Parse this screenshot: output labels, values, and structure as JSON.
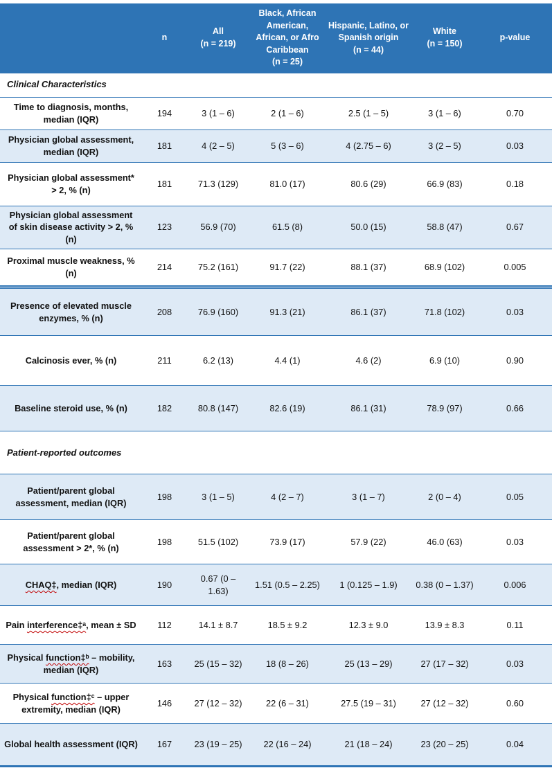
{
  "colors": {
    "header_bg": "#2E74B5",
    "header_text": "#FFFFFF",
    "row_shade": "#DEEAF6",
    "border": "#2E74B5",
    "squiggle": "#C00000"
  },
  "table": {
    "header": {
      "cols": [
        "",
        "n",
        "All\n(n = 219)",
        "Black, African American, African, or Afro Caribbean\n(n = 25)",
        "Hispanic, Latino, or Spanish origin\n(n = 44)",
        "White\n(n = 150)",
        "p-value"
      ]
    },
    "rows": [
      {
        "type": "section",
        "label": "Clinical Characteristics"
      },
      {
        "type": "data",
        "shade": false,
        "label": "Time to diagnosis, months, median (IQR)",
        "cells": [
          "194",
          "3 (1 – 6)",
          "2 (1 – 6)",
          "2.5 (1 – 5)",
          "3 (1 – 6)",
          "0.70"
        ]
      },
      {
        "type": "data",
        "shade": true,
        "label": "Physician global assessment, median (IQR)",
        "cells": [
          "181",
          "4 (2 – 5)",
          "5 (3 – 6)",
          "4 (2.75 – 6)",
          "3 (2 – 5)",
          "0.03"
        ]
      },
      {
        "type": "data",
        "shade": false,
        "label": "Physician global assessment* > 2, % (n)",
        "cells": [
          "181",
          "71.3 (129)",
          "81.0 (17)",
          "80.6 (29)",
          "66.9 (83)",
          "0.18"
        ]
      },
      {
        "type": "data",
        "shade": true,
        "label": "Physician global assessment of skin disease activity > 2, % (n)",
        "cells": [
          "123",
          "56.9 (70)",
          "61.5 (8)",
          "50.0 (15)",
          "58.8 (47)",
          "0.67"
        ]
      },
      {
        "type": "data",
        "shade": false,
        "label": "Proximal muscle weakness, % (n)",
        "cells": [
          "214",
          "75.2 (161)",
          "91.7 (22)",
          "88.1 (37)",
          "68.9 (102)",
          "0.005"
        ]
      },
      {
        "type": "data",
        "shade": true,
        "thick_top": true,
        "label": "Presence of elevated muscle enzymes, % (n)",
        "cells": [
          "208",
          "76.9 (160)",
          "91.3 (21)",
          "86.1 (37)",
          "71.8 (102)",
          "0.03"
        ]
      },
      {
        "type": "data",
        "shade": false,
        "label": "Calcinosis ever, % (n)",
        "cells": [
          "211",
          "6.2 (13)",
          "4.4 (1)",
          "4.6 (2)",
          "6.9 (10)",
          "0.90"
        ]
      },
      {
        "type": "data",
        "shade": true,
        "label": "Baseline steroid use, % (n)",
        "cells": [
          "182",
          "80.8 (147)",
          "82.6 (19)",
          "86.1 (31)",
          "78.9 (97)",
          "0.66"
        ]
      },
      {
        "type": "section",
        "label": "Patient-reported outcomes"
      },
      {
        "type": "data",
        "shade": true,
        "label": "Patient/parent global assessment, median (IQR)",
        "cells": [
          "198",
          "3 (1 – 5)",
          "4 (2 – 7)",
          "3 (1 – 7)",
          "2 (0 – 4)",
          "0.05"
        ]
      },
      {
        "type": "data",
        "shade": false,
        "label": "Patient/parent global assessment > 2*, % (n)",
        "cells": [
          "198",
          "51.5 (102)",
          "73.9 (17)",
          "57.9 (22)",
          "46.0 (63)",
          "0.03"
        ]
      },
      {
        "type": "data",
        "shade": true,
        "label": "CHAQ‡, median (IQR)",
        "parts": {
          "pre": "",
          "squiggle": "CHAQ‡",
          "post": ", median (IQR)"
        },
        "cells": [
          "190",
          "0.67 (0 – 1.63)",
          "1.51 (0.5 – 2.25)",
          "1 (0.125 – 1.9)",
          "0.38 (0 – 1.37)",
          "0.006"
        ]
      },
      {
        "type": "data",
        "shade": false,
        "label": "Pain interference‡ᵃ, mean ± SD",
        "parts": {
          "pre": "Pain ",
          "squiggle": "interference‡ᵃ",
          "post": ", mean ± SD"
        },
        "cells": [
          "112",
          "14.1 ± 8.7",
          "18.5 ± 9.2",
          "12.3 ± 9.0",
          "13.9 ± 8.3",
          "0.11"
        ]
      },
      {
        "type": "data",
        "shade": true,
        "label": "Physical function‡ᵇ – mobility, median (IQR)",
        "parts": {
          "pre": "Physical ",
          "squiggle": "function‡ᵇ",
          "post": " – mobility, median (IQR)"
        },
        "cells": [
          "163",
          "25 (15 – 32)",
          "18 (8 – 26)",
          "25 (13 – 29)",
          "27 (17 – 32)",
          "0.03"
        ]
      },
      {
        "type": "data",
        "shade": false,
        "label": "Physical function‡ᶜ – upper extremity, median (IQR)",
        "parts": {
          "pre": "Physical ",
          "squiggle": "function‡ᶜ",
          "post": " – upper extremity, median (IQR)"
        },
        "cells": [
          "146",
          "27 (12 – 32)",
          "22 (6 – 31)",
          "27.5 (19 – 31)",
          "27 (12 – 32)",
          "0.60"
        ]
      },
      {
        "type": "data",
        "shade": true,
        "label": "Global health assessment (IQR)",
        "cells": [
          "167",
          "23 (19 – 25)",
          "22 (16 – 24)",
          "21 (18 – 24)",
          "23 (20 – 25)",
          "0.04"
        ]
      }
    ]
  }
}
